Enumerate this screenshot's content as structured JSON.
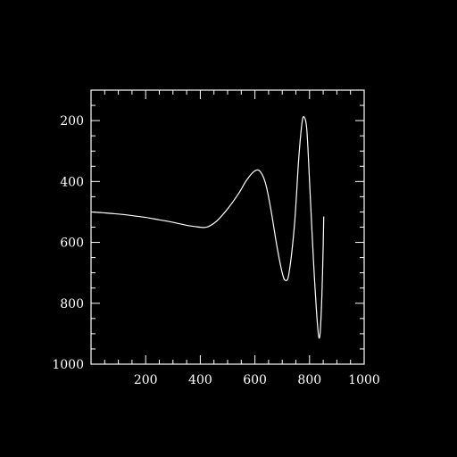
{
  "chart_data": {
    "type": "line",
    "title": "",
    "xlabel": "",
    "ylabel": "",
    "xlim": [
      0,
      1000
    ],
    "ylim": [
      1000,
      100
    ],
    "y_axis_inverted": true,
    "grid": false,
    "x_ticks": [
      {
        "value": 200,
        "label": "200"
      },
      {
        "value": 400,
        "label": "400"
      },
      {
        "value": 600,
        "label": "600"
      },
      {
        "value": 800,
        "label": "800"
      },
      {
        "value": 1000,
        "label": "1000"
      }
    ],
    "y_ticks": [
      {
        "value": 200,
        "label": "200"
      },
      {
        "value": 400,
        "label": "400"
      },
      {
        "value": 600,
        "label": "600"
      },
      {
        "value": 800,
        "label": "800"
      },
      {
        "value": 1000,
        "label": "1000"
      }
    ],
    "series": [
      {
        "color": "#ffffff",
        "points": [
          [
            0,
            500
          ],
          [
            50,
            503
          ],
          [
            100,
            507
          ],
          [
            150,
            512
          ],
          [
            200,
            518
          ],
          [
            250,
            526
          ],
          [
            300,
            534
          ],
          [
            350,
            544
          ],
          [
            380,
            548
          ],
          [
            410,
            551
          ],
          [
            430,
            548
          ],
          [
            460,
            530
          ],
          [
            500,
            490
          ],
          [
            540,
            440
          ],
          [
            570,
            395
          ],
          [
            600,
            365
          ],
          [
            620,
            368
          ],
          [
            640,
            410
          ],
          [
            660,
            500
          ],
          [
            680,
            610
          ],
          [
            700,
            700
          ],
          [
            712,
            725
          ],
          [
            725,
            700
          ],
          [
            745,
            540
          ],
          [
            760,
            330
          ],
          [
            772,
            210
          ],
          [
            780,
            188
          ],
          [
            790,
            230
          ],
          [
            800,
            400
          ],
          [
            815,
            670
          ],
          [
            830,
            880
          ],
          [
            838,
            905
          ],
          [
            845,
            780
          ],
          [
            850,
            610
          ],
          [
            852,
            515
          ]
        ]
      }
    ],
    "colors": {
      "background": "#000000",
      "axes": "#ffffff",
      "line": "#ffffff"
    }
  }
}
